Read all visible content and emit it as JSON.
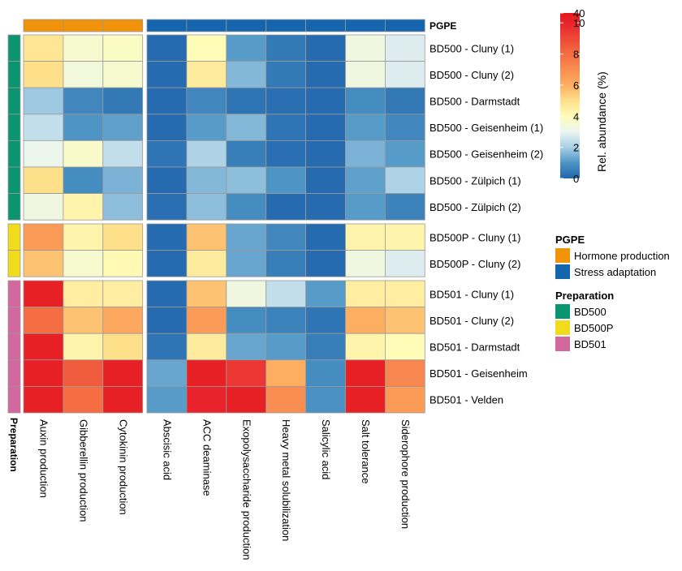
{
  "chart_data": {
    "type": "heatmap",
    "title": "",
    "column_annotation": {
      "title": "PGPE",
      "categories": [
        {
          "name": "Hormone production",
          "color": "#F0920A"
        },
        {
          "name": "Stress adaptation",
          "color": "#1565AE"
        }
      ],
      "assignment": [
        "Hormone production",
        "Hormone production",
        "Hormone production",
        "Stress adaptation",
        "Stress adaptation",
        "Stress adaptation",
        "Stress adaptation",
        "Stress adaptation",
        "Stress adaptation",
        "Stress adaptation"
      ]
    },
    "row_annotation": {
      "title": "Preparation",
      "categories": [
        {
          "name": "BD500",
          "color": "#0A9470"
        },
        {
          "name": "BD500P",
          "color": "#F0DC1A"
        },
        {
          "name": "BD501",
          "color": "#D2689E"
        }
      ],
      "groups": [
        {
          "name": "BD500",
          "row_count": 7
        },
        {
          "name": "BD500P",
          "row_count": 2
        },
        {
          "name": "BD501",
          "row_count": 5
        }
      ]
    },
    "columns": [
      "Auxin production",
      "Gibberellin production",
      "Cytokinin production",
      "Abscisic acid",
      "ACC deaminase",
      "Exopolysaccharide production",
      "Heavy metal solubilization",
      "Salicylic acid",
      "Salt tolerance",
      "Siderophore production"
    ],
    "rows": [
      "BD500 - Cluny (1)",
      "BD500 - Cluny (2)",
      "BD500 - Darmstadt",
      "BD500 - Geisenheim (1)",
      "BD500 - Geisenheim (2)",
      "BD500 - Zülpich (1)",
      "BD500 - Zülpich (2)",
      "BD500P - Cluny (1)",
      "BD500P - Cluny (2)",
      "BD501 - Cluny (1)",
      "BD501 - Cluny (2)",
      "BD501 - Darmstadt",
      "BD501 - Geisenheim",
      "BD501 - Velden"
    ],
    "values": [
      [
        4.8,
        3.6,
        3.8,
        0.1,
        4.0,
        1.1,
        0.4,
        0.1,
        3.3,
        2.8
      ],
      [
        5.0,
        3.4,
        3.6,
        0.1,
        4.6,
        1.6,
        0.4,
        0.1,
        3.3,
        2.8
      ],
      [
        1.9,
        0.7,
        0.4,
        0.1,
        0.7,
        0.3,
        0.2,
        0.1,
        0.8,
        0.4
      ],
      [
        2.4,
        1.0,
        1.2,
        0.1,
        1.1,
        1.6,
        0.3,
        0.1,
        1.1,
        0.7
      ],
      [
        3.1,
        3.7,
        2.4,
        0.3,
        2.1,
        0.5,
        0.2,
        0.1,
        1.5,
        1.1
      ],
      [
        5.0,
        0.8,
        1.5,
        0.1,
        1.6,
        1.7,
        1.0,
        0.1,
        1.2,
        2.1
      ],
      [
        3.3,
        4.3,
        1.7,
        0.2,
        1.7,
        0.8,
        0.1,
        0.1,
        1.1,
        0.6
      ],
      [
        6.6,
        4.3,
        5.0,
        0.1,
        5.6,
        1.3,
        0.7,
        0.1,
        4.3,
        4.3
      ],
      [
        5.6,
        3.6,
        4.1,
        0.1,
        4.6,
        1.3,
        0.5,
        0.1,
        3.3,
        2.8
      ],
      [
        20,
        4.5,
        4.5,
        0.1,
        5.6,
        3.3,
        2.4,
        1.1,
        4.5,
        4.5
      ],
      [
        8.0,
        5.6,
        6.2,
        0.1,
        6.6,
        0.8,
        0.6,
        0.3,
        6.0,
        5.6
      ],
      [
        20,
        4.3,
        5.0,
        0.3,
        4.6,
        1.3,
        1.1,
        0.5,
        4.3,
        4.0
      ],
      [
        20,
        8.5,
        20,
        1.3,
        20,
        9.5,
        6.0,
        0.8,
        20,
        7.2
      ],
      [
        20,
        8.0,
        20,
        1.1,
        10.5,
        20,
        7.0,
        0.9,
        20,
        6.6
      ]
    ],
    "legend": {
      "title": "Rel. abundance (%)",
      "ticks": [
        "0",
        "2",
        "4",
        "6",
        "8",
        "10",
        "40"
      ],
      "tick_values": [
        0,
        2,
        4,
        6,
        8,
        10,
        40
      ],
      "colors": [
        "#2166AC",
        "#4E95C5",
        "#A8CFE5",
        "#EAF5F2",
        "#FFFCB8",
        "#FEE08B",
        "#FDAE61",
        "#F46D43",
        "#E8232B",
        "#E41A1C"
      ]
    },
    "grid": false
  }
}
